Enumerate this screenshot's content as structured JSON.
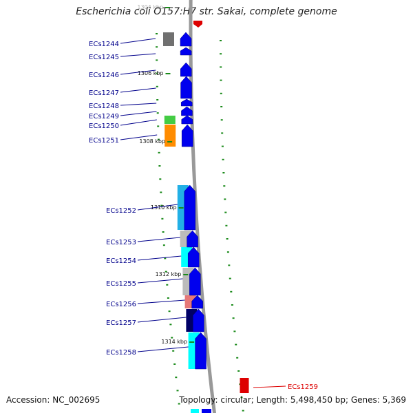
{
  "title": "Escherichia coli O157:H7 str. Sakai, complete genome",
  "accession": "Accession: NC_002695",
  "topology": "Topology: circular; Length: 5,498,450 bp; Genes: 5,369",
  "colors": {
    "forward": "#0000ee",
    "label": "#00008b",
    "highlight": "#dd0000",
    "backbone": "#999999",
    "tick": "#1a8a1a"
  },
  "scale_labels": [
    {
      "text": "1304 kbp",
      "kbp": 1304
    },
    {
      "text": "1306 kbp",
      "kbp": 1306
    },
    {
      "text": "1308 kbp",
      "kbp": 1308
    },
    {
      "text": "1310 kbp",
      "kbp": 1310
    },
    {
      "text": "1312 kbp",
      "kbp": 1312
    },
    {
      "text": "1314 kbp",
      "kbp": 1314
    }
  ],
  "genes": [
    {
      "id": "ECs1244",
      "cog_color": "#707070"
    },
    {
      "id": "ECs1245",
      "cog_color": ""
    },
    {
      "id": "ECs1246",
      "cog_color": ""
    },
    {
      "id": "ECs1247",
      "cog_color": ""
    },
    {
      "id": "ECs1248",
      "cog_color": ""
    },
    {
      "id": "ECs1249",
      "cog_color": ""
    },
    {
      "id": "ECs1250",
      "cog_color": "#44cc44"
    },
    {
      "id": "ECs1251",
      "cog_color": "#ff8c00"
    },
    {
      "id": "ECs1252",
      "cog_color": "#22b0e6"
    },
    {
      "id": "ECs1253",
      "cog_color": "#bbbbbb"
    },
    {
      "id": "ECs1254",
      "cog_color": "#00ffff"
    },
    {
      "id": "ECs1255",
      "cog_color": "#bbbbbb"
    },
    {
      "id": "ECs1256",
      "cog_color": "#e67878"
    },
    {
      "id": "ECs1257",
      "cog_color": "#000066"
    },
    {
      "id": "ECs1258",
      "cog_color": "#00ffff"
    },
    {
      "id": "ECs1259",
      "cog_color": "",
      "highlighted": true
    }
  ]
}
